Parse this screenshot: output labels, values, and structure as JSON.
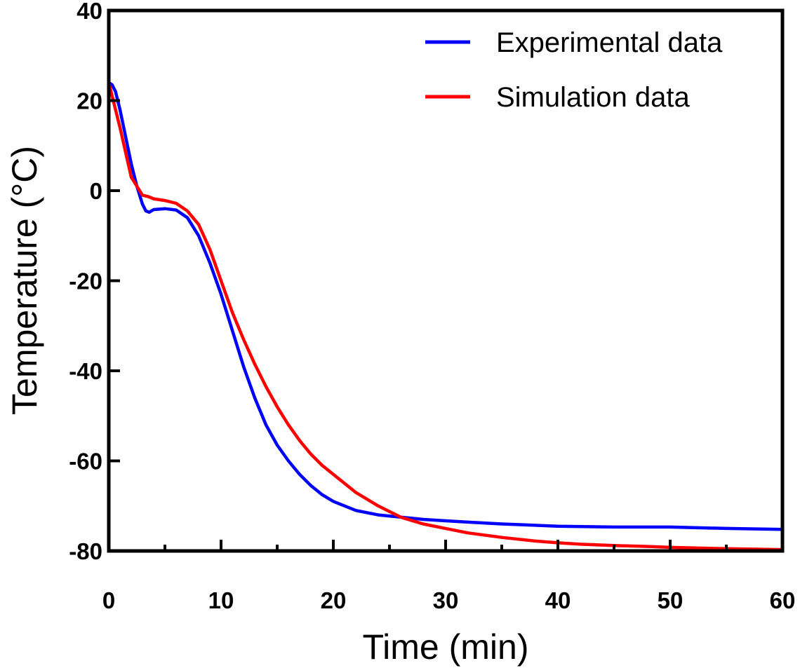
{
  "chart_data": {
    "type": "line",
    "title": "",
    "xlabel": "Time (min)",
    "ylabel": "Temperature (°C)",
    "xlim": [
      0,
      60
    ],
    "ylim": [
      -80,
      40
    ],
    "x_ticks": [
      0,
      10,
      20,
      30,
      40,
      50,
      60
    ],
    "x_tick_labels": [
      "0",
      "10",
      "20",
      "30",
      "40",
      "50",
      "60"
    ],
    "x_minor_ticks": [
      5,
      15,
      25,
      35,
      45,
      55
    ],
    "y_ticks": [
      40,
      20,
      0,
      -20,
      -40,
      -60,
      -80
    ],
    "y_tick_labels": [
      "40",
      "20",
      "0",
      "-20",
      "-40",
      "-60",
      "-80"
    ],
    "grid": false,
    "legend_position": "top-right",
    "series": [
      {
        "name": "Experimental data",
        "color": "#0000ff",
        "x": [
          0,
          0.3,
          0.6,
          1,
          1.5,
          2,
          2.5,
          3,
          3.3,
          3.6,
          4,
          5,
          6,
          7,
          8,
          9,
          10,
          11,
          12,
          13,
          14,
          15,
          16,
          17,
          18,
          19,
          20,
          22,
          24,
          26,
          28,
          30,
          32,
          35,
          40,
          45,
          50,
          55,
          60
        ],
        "y": [
          24,
          23.5,
          22,
          18,
          12,
          6,
          1,
          -3,
          -4.5,
          -4.8,
          -4.2,
          -4,
          -4.3,
          -6,
          -10,
          -16,
          -23,
          -31,
          -39,
          -46,
          -52,
          -56.5,
          -60,
          -63,
          -65.5,
          -67.5,
          -69,
          -71,
          -72,
          -72.5,
          -73,
          -73.3,
          -73.6,
          -74,
          -74.5,
          -74.7,
          -74.7,
          -75,
          -75.2
        ]
      },
      {
        "name": "Simulation data",
        "color": "#ff0000",
        "x": [
          0,
          1,
          2,
          3,
          3.5,
          4,
          5,
          6,
          7,
          8,
          9,
          10,
          11,
          12,
          13,
          14,
          15,
          16,
          17,
          18,
          19,
          20,
          22,
          24,
          26,
          28,
          30,
          32,
          35,
          38,
          40,
          42,
          45,
          48,
          50,
          55,
          60
        ],
        "y": [
          24,
          14,
          3,
          -1,
          -1.3,
          -1.8,
          -2.2,
          -2.8,
          -4.5,
          -7.5,
          -13,
          -20,
          -27,
          -33,
          -38.5,
          -43.5,
          -48,
          -52,
          -55.5,
          -58.5,
          -61,
          -63,
          -67,
          -70,
          -72.5,
          -74,
          -75,
          -76,
          -77,
          -77.8,
          -78.2,
          -78.5,
          -78.8,
          -79,
          -79.2,
          -79.5,
          -79.7
        ]
      }
    ]
  }
}
